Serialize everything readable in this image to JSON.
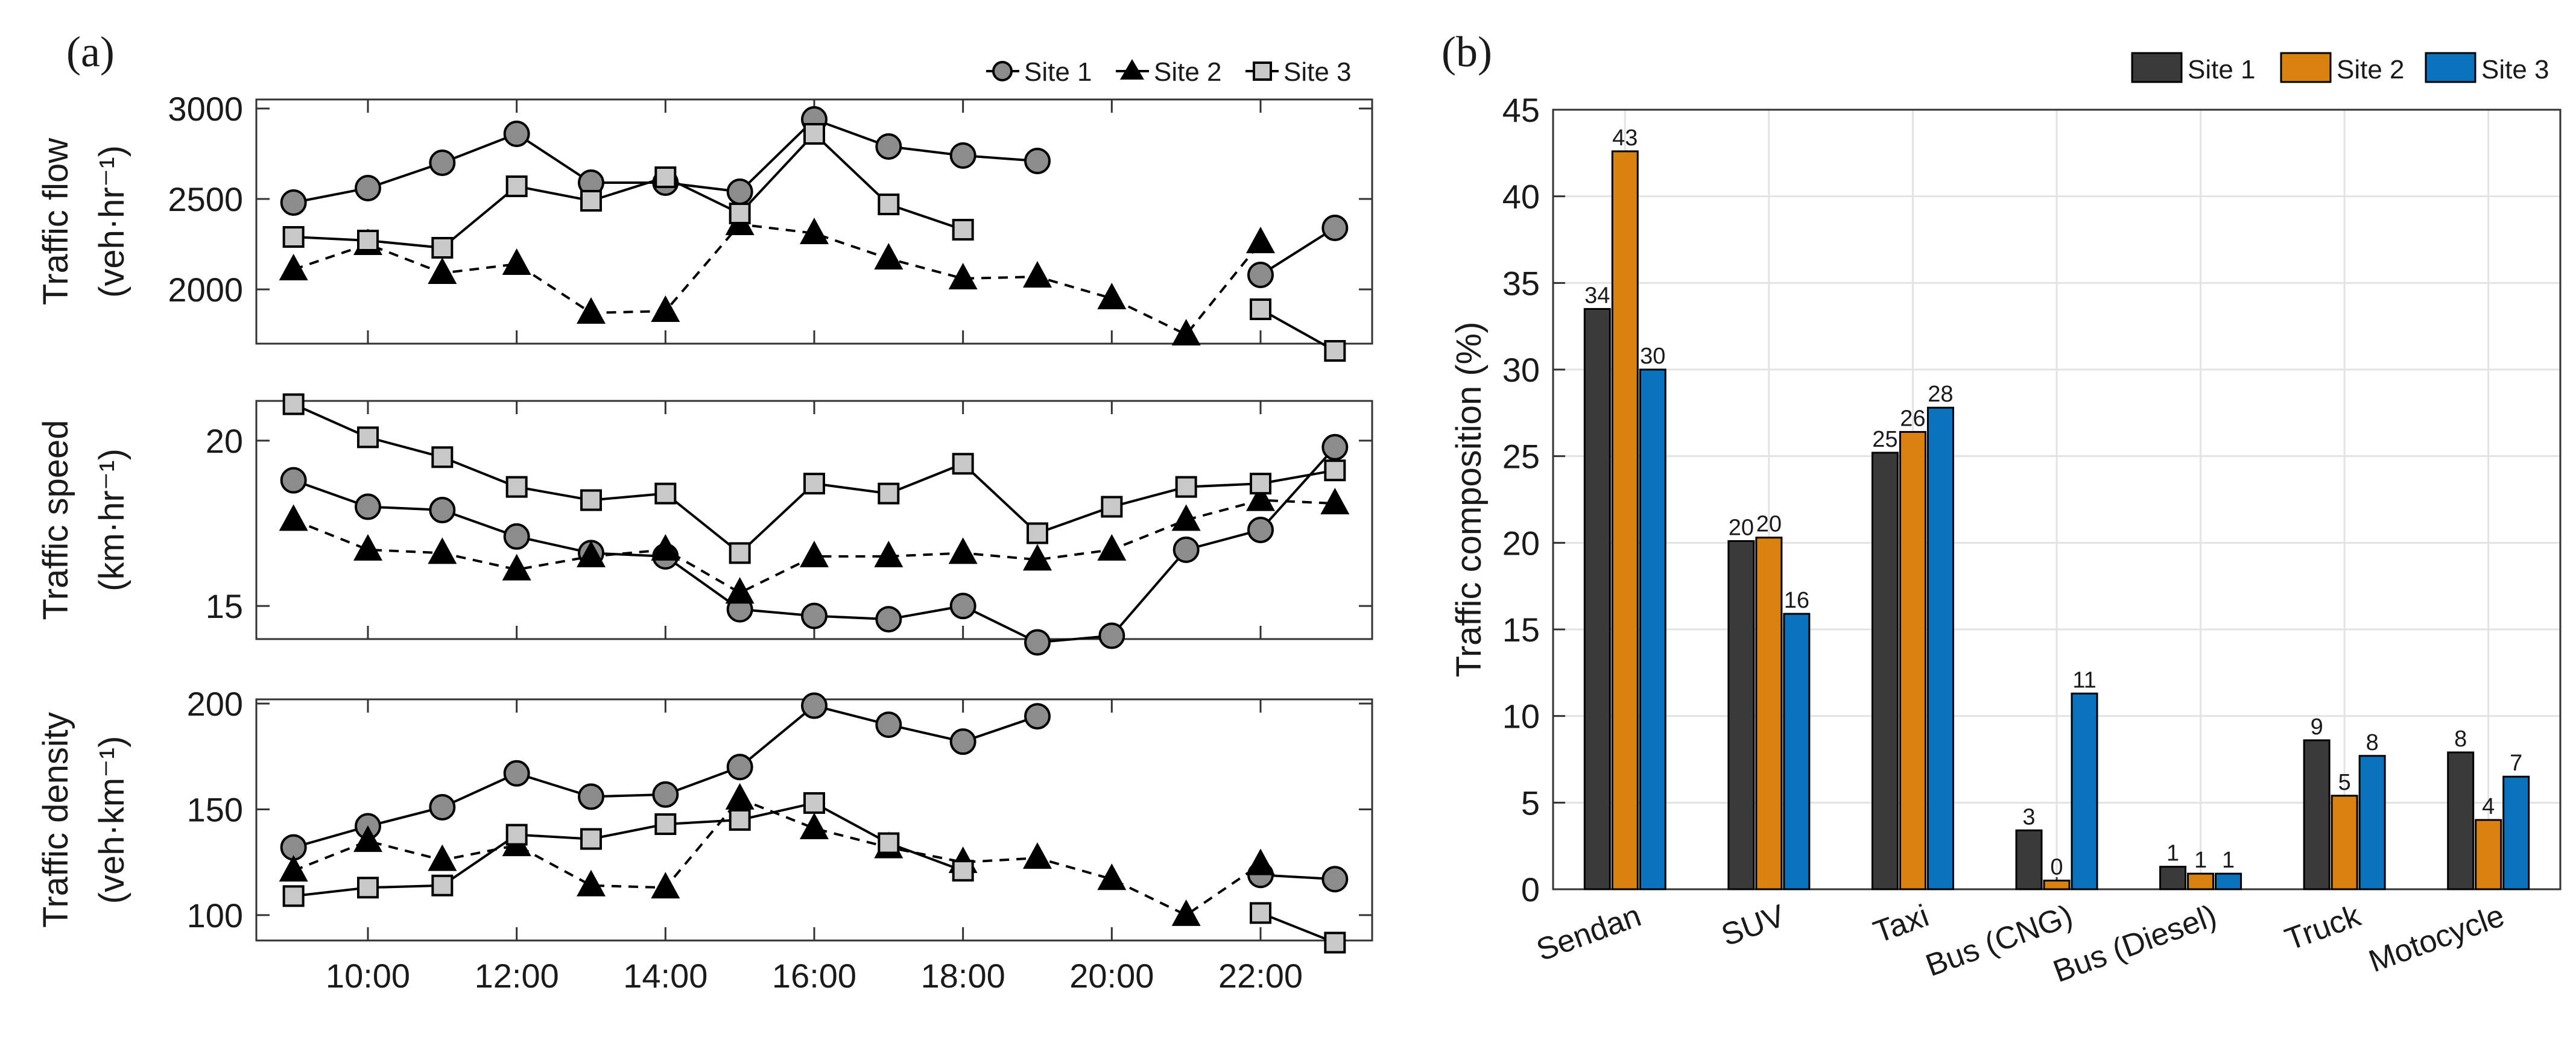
{
  "figure": {
    "panel_a_label": "(a)",
    "panel_b_label": "(b)"
  },
  "chart_data": [
    {
      "type": "line",
      "panel": "(a)",
      "title": "Traffic flow",
      "ylabel_main": "Traffic flow",
      "ylabel_unit": "(veh·hr⁻¹)",
      "ylim": [
        1700,
        3050
      ],
      "yticks": [
        2000,
        2500,
        3000
      ],
      "xlim": [
        8.5,
        23.5
      ],
      "xticks": [
        10,
        12,
        14,
        16,
        18,
        20,
        22
      ],
      "xticklabels": [],
      "series": [
        {
          "name": "Site 1",
          "marker": "circle",
          "dash": "solid",
          "color": "#8c8c8c",
          "segments": [
            {
              "x": [
                9,
                10,
                11,
                12,
                13,
                14,
                15,
                16,
                17,
                18,
                19
              ],
              "y": [
                2480,
                2560,
                2700,
                2860,
                2590,
                2590,
                2540,
                2940,
                2790,
                2740,
                2710
              ]
            },
            {
              "x": [
                22,
                23
              ],
              "y": [
                2080,
                2340
              ]
            }
          ]
        },
        {
          "name": "Site 2",
          "marker": "triangle",
          "dash": "dashed",
          "color": "#000000",
          "segments": [
            {
              "x": [
                9,
                10,
                11,
                12,
                13,
                14,
                15,
                16,
                17,
                18,
                19,
                20,
                21,
                22
              ],
              "y": [
                2110,
                2250,
                2090,
                2140,
                1870,
                1880,
                2360,
                2310,
                2170,
                2060,
                2070,
                1950,
                1750,
                2260
              ]
            }
          ]
        },
        {
          "name": "Site 3",
          "marker": "square",
          "dash": "solid",
          "color": "#c8c8c8",
          "segments": [
            {
              "x": [
                9,
                10,
                11,
                12,
                13,
                14,
                15,
                16,
                17,
                18
              ],
              "y": [
                2290,
                2270,
                2230,
                2570,
                2490,
                2620,
                2420,
                2860,
                2470,
                2330
              ]
            },
            {
              "x": [
                22,
                23
              ],
              "y": [
                1890,
                1660
              ]
            }
          ]
        }
      ],
      "legend": [
        "Site 1",
        "Site 2",
        "Site 3"
      ]
    },
    {
      "type": "line",
      "panel": "(a)",
      "title": "Traffic speed",
      "ylabel_main": "Traffic speed",
      "ylabel_unit": "(km·hr⁻¹)",
      "ylim": [
        14.0,
        21.2
      ],
      "yticks": [
        15,
        20
      ],
      "xlim": [
        8.5,
        23.5
      ],
      "xticks": [
        10,
        12,
        14,
        16,
        18,
        20,
        22
      ],
      "xticklabels": [],
      "series": [
        {
          "name": "Site 1",
          "marker": "circle",
          "dash": "solid",
          "color": "#8c8c8c",
          "segments": [
            {
              "x": [
                9,
                10,
                11,
                12,
                13,
                14,
                15,
                16,
                17,
                18,
                19,
                20,
                21,
                22,
                23
              ],
              "y": [
                18.8,
                18.0,
                17.9,
                17.1,
                16.6,
                16.5,
                14.9,
                14.7,
                14.6,
                15.0,
                13.9,
                14.1,
                16.7,
                17.3,
                19.8
              ]
            }
          ]
        },
        {
          "name": "Site 2",
          "marker": "triangle",
          "dash": "dashed",
          "color": "#000000",
          "segments": [
            {
              "x": [
                9,
                10,
                11,
                12,
                13,
                14,
                15,
                16,
                17,
                18,
                19,
                20,
                21,
                22,
                23
              ],
              "y": [
                17.6,
                16.7,
                16.6,
                16.1,
                16.5,
                16.7,
                15.4,
                16.5,
                16.5,
                16.6,
                16.4,
                16.7,
                17.6,
                18.2,
                18.1
              ]
            }
          ]
        },
        {
          "name": "Site 3",
          "marker": "square",
          "dash": "solid",
          "color": "#c8c8c8",
          "segments": [
            {
              "x": [
                9,
                10,
                11,
                12,
                13,
                14,
                15,
                16,
                17,
                18,
                19,
                20,
                21,
                22,
                23
              ],
              "y": [
                21.1,
                20.1,
                19.5,
                18.6,
                18.2,
                18.4,
                16.6,
                18.7,
                18.4,
                19.3,
                17.2,
                18.0,
                18.6,
                18.7,
                19.1
              ]
            }
          ]
        }
      ]
    },
    {
      "type": "line",
      "panel": "(a)",
      "title": "Traffic density",
      "ylabel_main": "Traffic density",
      "ylabel_unit": "(veh·km⁻¹)",
      "ylim": [
        88,
        202
      ],
      "yticks": [
        100,
        150,
        200
      ],
      "xlim": [
        8.5,
        23.5
      ],
      "xticks": [
        10,
        12,
        14,
        16,
        18,
        20,
        22
      ],
      "xticklabels": [
        "10:00",
        "12:00",
        "14:00",
        "16:00",
        "18:00",
        "20:00",
        "22:00"
      ],
      "series": [
        {
          "name": "Site 1",
          "marker": "circle",
          "dash": "solid",
          "color": "#8c8c8c",
          "segments": [
            {
              "x": [
                9,
                10,
                11,
                12,
                13,
                14,
                15,
                16,
                17,
                18,
                19
              ],
              "y": [
                132,
                142,
                151,
                167,
                156,
                157,
                170,
                199,
                190,
                182,
                194
              ]
            },
            {
              "x": [
                22,
                23
              ],
              "y": [
                119,
                117
              ]
            }
          ]
        },
        {
          "name": "Site 2",
          "marker": "triangle",
          "dash": "dashed",
          "color": "#000000",
          "segments": [
            {
              "x": [
                9,
                10,
                11,
                12,
                13,
                14,
                15,
                16,
                17,
                18,
                19,
                20,
                21,
                22
              ],
              "y": [
                121,
                135,
                126,
                133,
                114,
                113,
                155,
                141,
                132,
                125,
                127,
                117,
                100,
                124
              ]
            }
          ]
        },
        {
          "name": "Site 3",
          "marker": "square",
          "dash": "solid",
          "color": "#c8c8c8",
          "segments": [
            {
              "x": [
                9,
                10,
                11,
                12,
                13,
                14,
                15,
                16,
                17,
                18
              ],
              "y": [
                109,
                113,
                114,
                138,
                136,
                143,
                145,
                153,
                134,
                121
              ]
            },
            {
              "x": [
                22,
                23
              ],
              "y": [
                101,
                87
              ]
            }
          ]
        }
      ]
    },
    {
      "type": "bar",
      "panel": "(b)",
      "title": "",
      "xlabel": "",
      "ylabel": "Traffic composition (%)",
      "ylim": [
        0,
        45
      ],
      "yticks": [
        0,
        5,
        10,
        15,
        20,
        25,
        30,
        35,
        40,
        45
      ],
      "categories": [
        "Sendan",
        "SUV",
        "Taxi",
        "Bus (CNG)",
        "Bus (Diesel)",
        "Truck",
        "Motocycle"
      ],
      "series": [
        {
          "name": "Site 1",
          "color": "#3a3a3a",
          "values": [
            33.5,
            20.1,
            25.2,
            3.4,
            1.3,
            8.6,
            7.9
          ],
          "labels": [
            "34",
            "20",
            "25",
            "3",
            "1",
            "9",
            "8"
          ]
        },
        {
          "name": "Site 2",
          "color": "#d9820f",
          "values": [
            42.6,
            20.3,
            26.4,
            0.5,
            0.9,
            5.4,
            4.0
          ],
          "labels": [
            "43",
            "20",
            "26",
            "0",
            "1",
            "5",
            "4"
          ]
        },
        {
          "name": "Site 3",
          "color": "#0b72bd",
          "values": [
            30.0,
            15.9,
            27.8,
            11.3,
            0.9,
            7.7,
            6.5
          ],
          "labels": [
            "30",
            "16",
            "28",
            "11",
            "1",
            "8",
            "7"
          ]
        }
      ],
      "legend": [
        "Site 1",
        "Site 2",
        "Site 3"
      ],
      "grid": true
    }
  ]
}
